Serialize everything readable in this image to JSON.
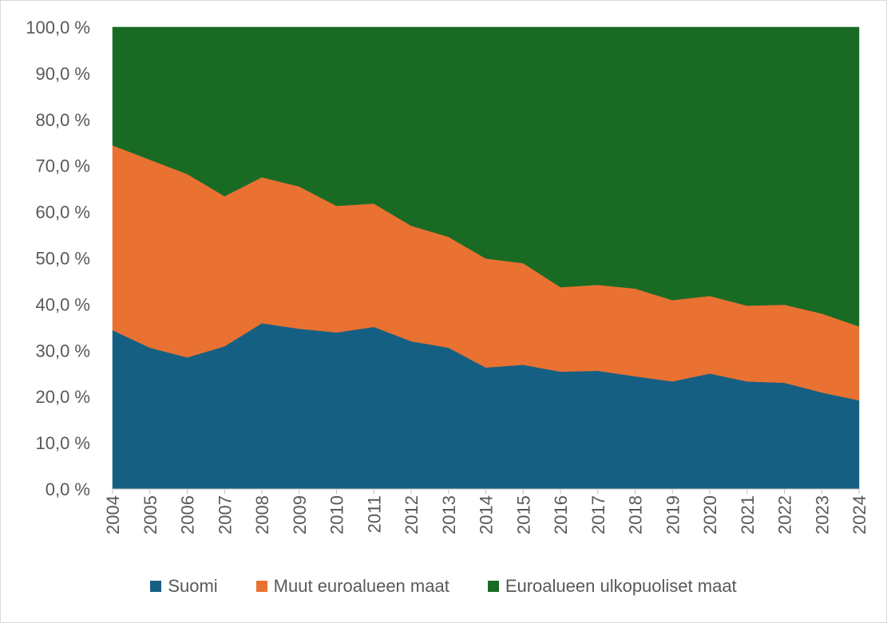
{
  "chart_data": {
    "type": "area",
    "stacked": true,
    "title": "",
    "xlabel": "",
    "ylabel": "",
    "ylim": [
      0,
      100
    ],
    "yticks": [
      "0,0 %",
      "10,0 %",
      "20,0 %",
      "30,0 %",
      "40,0 %",
      "50,0 %",
      "60,0 %",
      "70,0 %",
      "80,0 %",
      "90,0 %",
      "100,0 %"
    ],
    "categories": [
      "2004",
      "2005",
      "2006",
      "2007",
      "2008",
      "2009",
      "2010",
      "2011",
      "2012",
      "2013",
      "2014",
      "2015",
      "2016",
      "2017",
      "2018",
      "2019",
      "2020",
      "2021",
      "2022",
      "2023",
      "2024"
    ],
    "legend_position": "bottom",
    "series": [
      {
        "name": "Suomi",
        "color": "#156082",
        "values": [
          34.4,
          30.6,
          28.5,
          30.9,
          35.9,
          34.7,
          33.9,
          35.1,
          32.0,
          30.6,
          26.3,
          26.9,
          25.4,
          25.6,
          24.4,
          23.3,
          25.0,
          23.3,
          23.0,
          20.9,
          19.2
        ]
      },
      {
        "name": "Muut euroalueen maat",
        "color": "#E97132",
        "values": [
          40.0,
          40.7,
          39.7,
          32.5,
          31.6,
          30.8,
          27.4,
          26.7,
          25.0,
          24.0,
          23.6,
          22.0,
          18.3,
          18.6,
          19.0,
          17.6,
          16.8,
          16.4,
          16.9,
          17.1,
          16.0
        ]
      },
      {
        "name": "Euroalueen ulkopuoliset maat",
        "color": "#196B24",
        "values": [
          25.6,
          28.7,
          31.8,
          36.6,
          32.5,
          34.5,
          38.7,
          38.2,
          43.0,
          45.4,
          50.1,
          51.1,
          56.3,
          55.8,
          56.6,
          59.1,
          58.2,
          60.3,
          60.1,
          62.0,
          64.8
        ]
      }
    ]
  }
}
